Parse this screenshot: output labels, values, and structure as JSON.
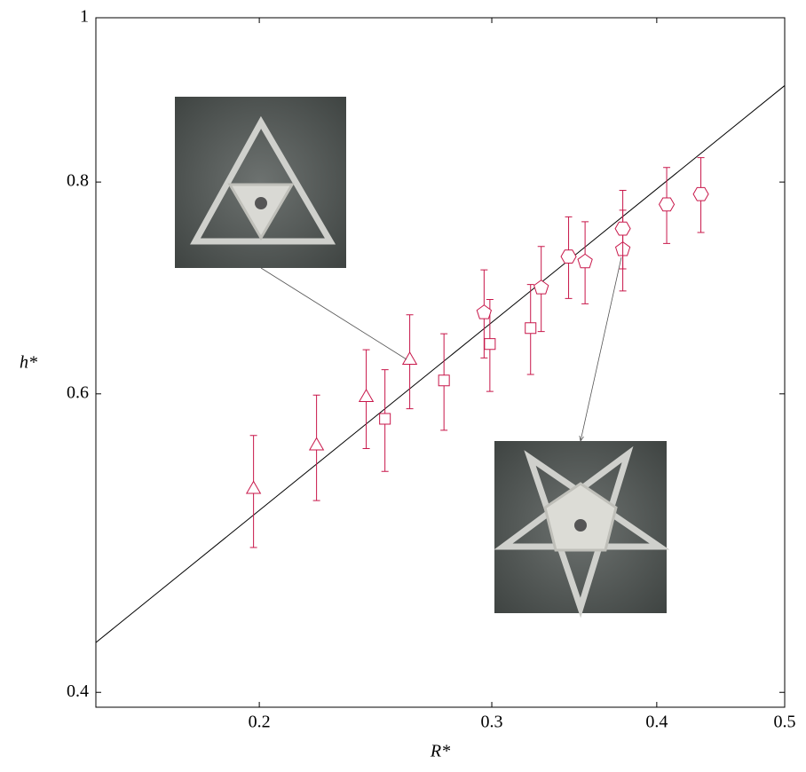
{
  "chart_data": {
    "type": "scatter",
    "xlabel": "R*",
    "ylabel": "h*",
    "xlim": [
      0.1504,
      0.5
    ],
    "ylim": [
      0.392,
      1
    ],
    "xticks": [
      0.2,
      0.3,
      0.4,
      0.5
    ],
    "yticks": [
      0.4,
      0.6,
      0.8,
      1
    ],
    "xscale": "log",
    "yscale": "log",
    "series": [
      {
        "marker": "triangle",
        "color": "#c8174a",
        "x": [
          0.198,
          0.221,
          0.241,
          0.26
        ],
        "values": [
          0.527,
          0.559,
          0.597,
          0.628
        ],
        "errors": [
          0.04,
          0.04,
          0.04,
          0.04
        ]
      },
      {
        "marker": "square",
        "color": "#c8174a",
        "x": [
          0.249,
          0.276,
          0.299,
          0.321
        ],
        "values": [
          0.58,
          0.611,
          0.642,
          0.656
        ],
        "errors": [
          0.04,
          0.04,
          0.04,
          0.04
        ]
      },
      {
        "marker": "pentagon",
        "color": "#c8174a",
        "x": [
          0.296,
          0.327,
          0.353,
          0.377
        ],
        "values": [
          0.67,
          0.693,
          0.718,
          0.73
        ],
        "errors": [
          0.04,
          0.04,
          0.04,
          0.04
        ]
      },
      {
        "marker": "hexagon",
        "color": "#c8174a",
        "x": [
          0.343,
          0.377,
          0.407,
          0.432
        ],
        "values": [
          0.723,
          0.751,
          0.776,
          0.787
        ],
        "errors": [
          0.04,
          0.04,
          0.04,
          0.04
        ]
      }
    ],
    "fit": {
      "color": "#000000",
      "x": [
        0.1504,
        0.5
      ],
      "values": [
        0.428,
        0.912
      ]
    }
  }
}
